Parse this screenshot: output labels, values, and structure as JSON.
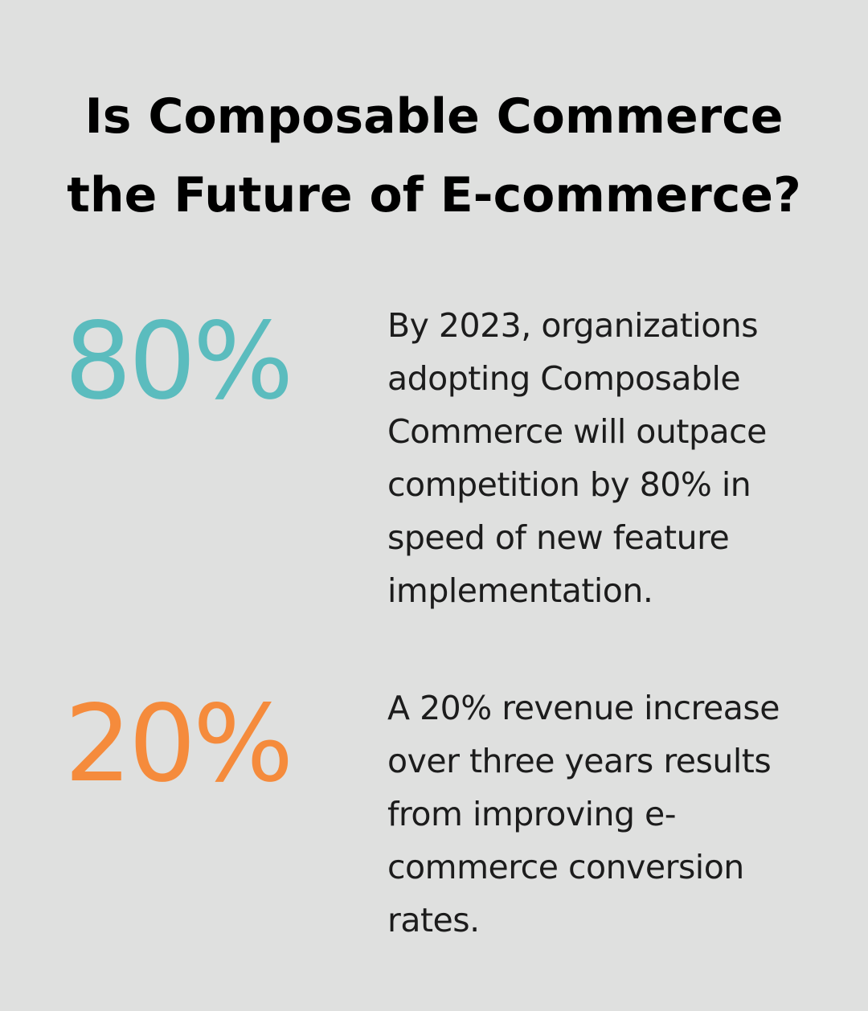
{
  "title": "Is Composable Commerce the Future of E-commerce?",
  "stats": [
    {
      "value": "80%",
      "color": "#5bbcbe",
      "text": "By 2023, organizations adopting Composable Commerce will outpace competition by 80% in speed of new feature implementation."
    },
    {
      "value": "20%",
      "color": "#f58b3c",
      "text": "A 20% revenue increase over three years results from improving e-commerce conversion rates."
    }
  ]
}
